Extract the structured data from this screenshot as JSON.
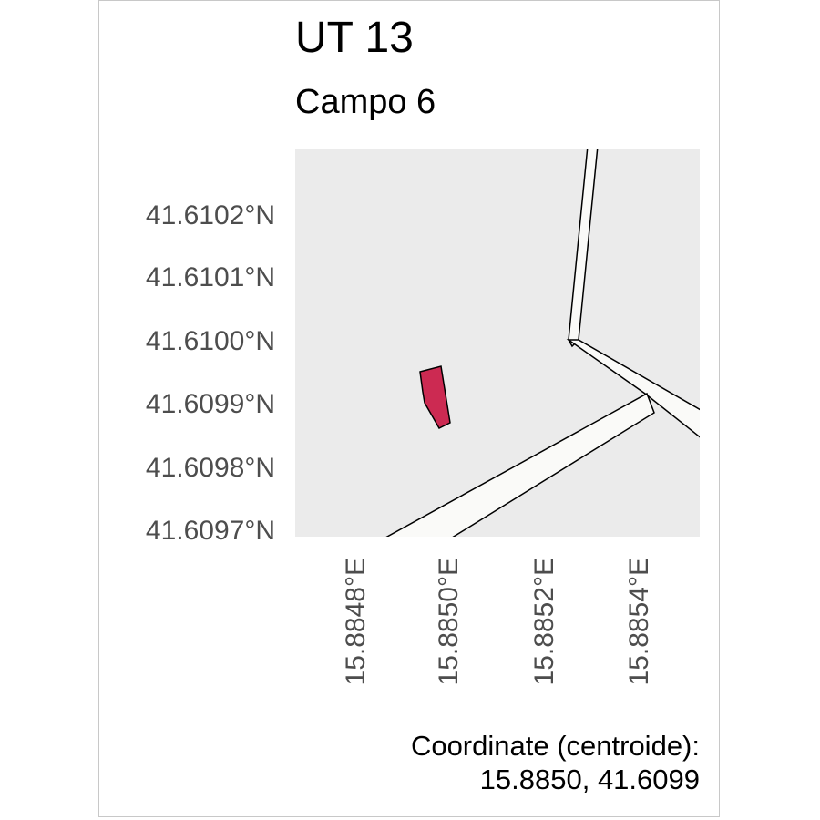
{
  "title": "UT 13",
  "subtitle": "Campo 6",
  "map": {
    "panel_color": "#ebebeb",
    "road_fill": "#fafaf8",
    "parcel_color": "#cc2a52",
    "y_ticks": [
      "41.6102°N",
      "41.6101°N",
      "41.6100°N",
      "41.6099°N",
      "41.6098°N",
      "41.6097°N"
    ],
    "x_ticks": [
      "15.8848°E",
      "15.8850°E",
      "15.8852°E",
      "15.8854°E"
    ]
  },
  "caption": {
    "line1": "Coordinate (centroide):",
    "line2": "15.8850, 41.6099"
  }
}
